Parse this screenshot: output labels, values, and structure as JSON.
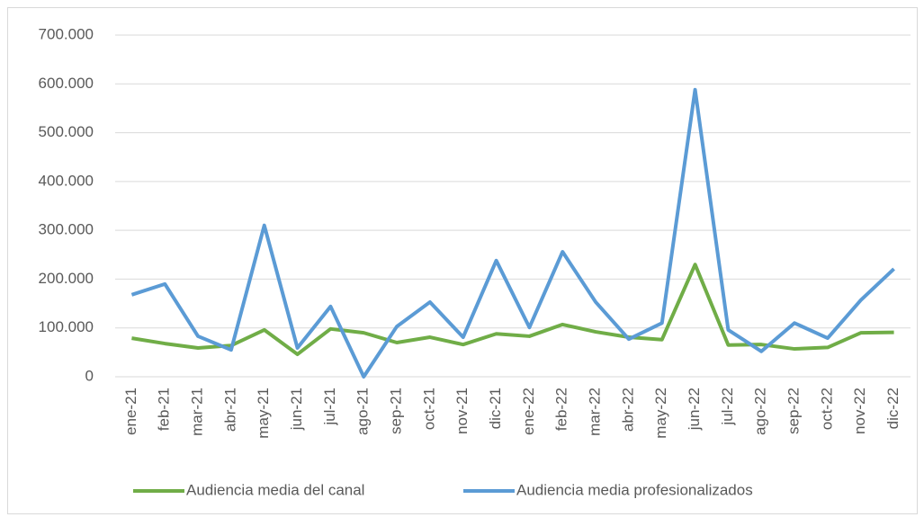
{
  "chart_data": {
    "type": "line",
    "categories": [
      "ene-21",
      "feb-21",
      "mar-21",
      "abr-21",
      "may-21",
      "jun-21",
      "jul-21",
      "ago-21",
      "sep-21",
      "oct-21",
      "nov-21",
      "dic-21",
      "ene-22",
      "feb-22",
      "mar-22",
      "abr-22",
      "may-22",
      "jun-22",
      "jul-22",
      "ago-22",
      "sep-22",
      "oct-22",
      "nov-22",
      "dic-22"
    ],
    "series": [
      {
        "name": "Audiencia media del canal",
        "color": "#70ad47",
        "values": [
          79000,
          68000,
          59000,
          64000,
          96000,
          46000,
          98000,
          90000,
          70000,
          81000,
          66000,
          88000,
          83000,
          107000,
          92000,
          81000,
          76000,
          230000,
          65000,
          66000,
          57000,
          60000,
          90000,
          91000
        ]
      },
      {
        "name": "Audiencia media profesionalizados",
        "color": "#5b9bd5",
        "values": [
          168000,
          190000,
          83000,
          55000,
          310000,
          59000,
          144000,
          0,
          103000,
          153000,
          81000,
          238000,
          101000,
          256000,
          153000,
          77000,
          110000,
          588000,
          96000,
          52000,
          110000,
          79000,
          157000,
          221000
        ]
      }
    ],
    "ylim": [
      0,
      700000
    ],
    "yticks": [
      0,
      {
        "value": 100000,
        "label": "100.000"
      },
      {
        "value": 200000,
        "label": "200.000"
      },
      {
        "value": 300000,
        "label": "300.000"
      },
      {
        "value": 400000,
        "label": "400.000"
      },
      {
        "value": 500000,
        "label": "500.000"
      },
      {
        "value": 600000,
        "label": "600.000"
      },
      {
        "value": 700000,
        "label": "700.000"
      }
    ],
    "grid": true,
    "legend": "bottom"
  }
}
